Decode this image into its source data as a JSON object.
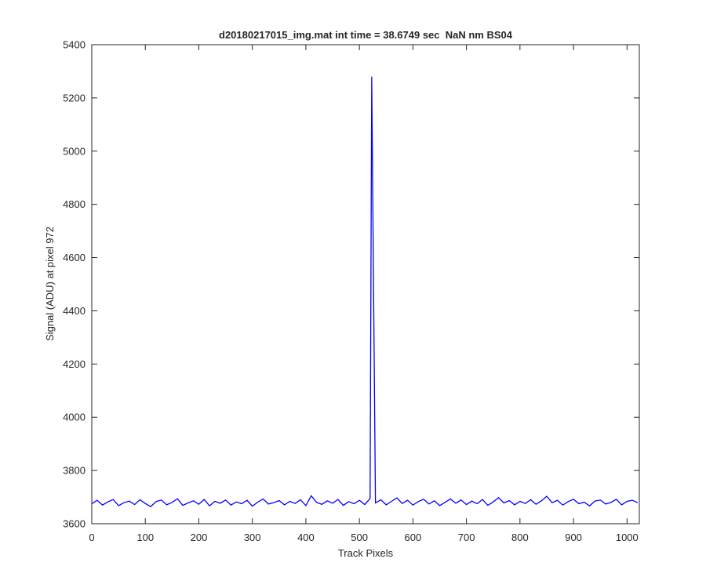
{
  "chart_data": {
    "type": "line",
    "title": "d20180217015_img.mat int time = 38.6749 sec  NaN nm BS04",
    "xlabel": "Track Pixels",
    "ylabel": "Signal (ADU) at pixel 972",
    "color": "#0000ff",
    "xlim": [
      0,
      1023
    ],
    "ylim": [
      3600,
      5400
    ],
    "xticks": [
      0,
      100,
      200,
      300,
      400,
      500,
      600,
      700,
      800,
      900,
      1000
    ],
    "yticks": [
      3600,
      3800,
      4000,
      4200,
      4400,
      4600,
      4800,
      5000,
      5200,
      5400
    ],
    "x": [
      0,
      10,
      20,
      30,
      40,
      50,
      60,
      70,
      80,
      90,
      100,
      110,
      120,
      130,
      140,
      150,
      160,
      170,
      180,
      190,
      200,
      210,
      220,
      230,
      240,
      250,
      260,
      270,
      280,
      290,
      300,
      310,
      320,
      330,
      340,
      350,
      360,
      370,
      380,
      390,
      400,
      410,
      420,
      430,
      440,
      450,
      460,
      470,
      480,
      490,
      500,
      510,
      520,
      523,
      530,
      540,
      550,
      560,
      570,
      580,
      590,
      600,
      610,
      620,
      630,
      640,
      650,
      660,
      670,
      680,
      690,
      700,
      710,
      720,
      730,
      740,
      750,
      760,
      770,
      780,
      790,
      800,
      810,
      820,
      830,
      840,
      850,
      860,
      870,
      880,
      890,
      900,
      910,
      920,
      930,
      940,
      950,
      960,
      970,
      980,
      990,
      1000,
      1010,
      1020
    ],
    "values": [
      3675,
      3688,
      3670,
      3682,
      3691,
      3668,
      3679,
      3685,
      3672,
      3690,
      3676,
      3664,
      3683,
      3689,
      3671,
      3680,
      3694,
      3669,
      3678,
      3686,
      3673,
      3691,
      3667,
      3684,
      3677,
      3689,
      3670,
      3682,
      3675,
      3688,
      3666,
      3681,
      3693,
      3674,
      3679,
      3687,
      3671,
      3684,
      3676,
      3690,
      3668,
      3705,
      3680,
      3673,
      3686,
      3677,
      3691,
      3669,
      3683,
      3675,
      3688,
      3672,
      3695,
      5280,
      3678,
      3690,
      3671,
      3684,
      3697,
      3676,
      3688,
      3670,
      3683,
      3692,
      3674,
      3686,
      3668,
      3680,
      3693,
      3677,
      3689,
      3672,
      3685,
      3675,
      3691,
      3669,
      3682,
      3698,
      3678,
      3687,
      3671,
      3684,
      3676,
      3690,
      3673,
      3686,
      3703,
      3679,
      3688,
      3670,
      3683,
      3692,
      3675,
      3681,
      3667,
      3685,
      3689,
      3674,
      3680,
      3692,
      3671,
      3684,
      3688,
      3679
    ]
  }
}
